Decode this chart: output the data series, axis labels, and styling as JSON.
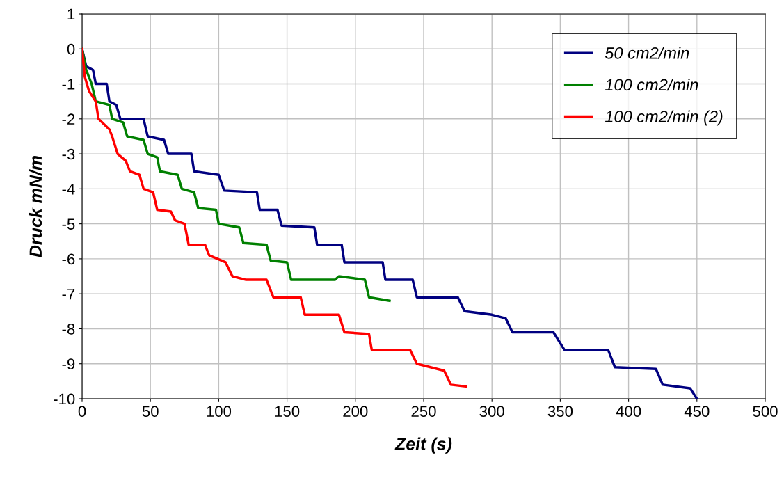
{
  "chart_data": {
    "type": "line",
    "xlabel": "Zeit (s)",
    "ylabel": "Druck mN/m",
    "xlim": [
      0,
      500
    ],
    "ylim": [
      -10,
      1
    ],
    "xticks": [
      0,
      50,
      100,
      150,
      200,
      250,
      300,
      350,
      400,
      450,
      500
    ],
    "yticks": [
      {
        "value": -10,
        "label": "-10"
      },
      {
        "value": -9,
        "label": "-9"
      },
      {
        "value": -8,
        "label": "-8"
      },
      {
        "value": -7,
        "label": "-7"
      },
      {
        "value": -6,
        "label": "-6"
      },
      {
        "value": -5,
        "label": "-5"
      },
      {
        "value": -4,
        "label": "-4"
      },
      {
        "value": -3,
        "label": "-3"
      },
      {
        "value": -2,
        "label": "-2"
      },
      {
        "value": -1,
        "label": "-1"
      },
      0,
      1
    ],
    "grid": true,
    "legend": "top right",
    "marker": "none",
    "line_style": "solid",
    "series": [
      {
        "name": "50 cm2/min",
        "color": "#000080",
        "x": [
          0,
          3,
          8,
          10,
          18,
          20,
          25,
          28,
          45,
          48,
          60,
          63,
          80,
          82,
          100,
          104,
          128,
          130,
          143,
          146,
          170,
          172,
          190,
          192,
          220,
          222,
          242,
          245,
          275,
          280,
          300,
          310,
          315,
          345,
          353,
          385,
          390,
          420,
          425,
          445,
          450
        ],
        "values": [
          0,
          -0.5,
          -0.6,
          -1.0,
          -1.0,
          -1.5,
          -1.6,
          -2.0,
          -2.0,
          -2.5,
          -2.6,
          -3.0,
          -3.0,
          -3.5,
          -3.6,
          -4.05,
          -4.1,
          -4.6,
          -4.6,
          -5.05,
          -5.1,
          -5.6,
          -5.6,
          -6.1,
          -6.1,
          -6.6,
          -6.6,
          -7.1,
          -7.1,
          -7.5,
          -7.6,
          -7.7,
          -8.1,
          -8.1,
          -8.6,
          -8.6,
          -9.1,
          -9.15,
          -9.6,
          -9.7,
          -10
        ]
      },
      {
        "name": "100 cm2/min",
        "color": "#008000",
        "x": [
          0,
          3,
          7,
          10,
          20,
          22,
          30,
          33,
          45,
          48,
          55,
          57,
          70,
          73,
          82,
          85,
          98,
          100,
          115,
          118,
          135,
          138,
          150,
          153,
          185,
          188,
          207,
          210,
          225
        ],
        "values": [
          0,
          -0.6,
          -1.0,
          -1.5,
          -1.6,
          -2.0,
          -2.1,
          -2.5,
          -2.6,
          -3.0,
          -3.1,
          -3.5,
          -3.6,
          -4.0,
          -4.1,
          -4.55,
          -4.6,
          -5.0,
          -5.1,
          -5.55,
          -5.6,
          -6.05,
          -6.1,
          -6.6,
          -6.6,
          -6.5,
          -6.6,
          -7.1,
          -7.2
        ]
      },
      {
        "name": "100 cm2/min (2)",
        "color": "#ff0000",
        "x": [
          0,
          2,
          5,
          10,
          12,
          20,
          22,
          26,
          32,
          35,
          42,
          45,
          52,
          55,
          65,
          68,
          75,
          78,
          90,
          93,
          105,
          110,
          120,
          135,
          140,
          160,
          163,
          188,
          192,
          210,
          212,
          240,
          245,
          255,
          265,
          270,
          281
        ],
        "values": [
          0,
          -0.8,
          -1.2,
          -1.5,
          -2.0,
          -2.3,
          -2.5,
          -3.0,
          -3.2,
          -3.5,
          -3.6,
          -4.0,
          -4.1,
          -4.6,
          -4.65,
          -4.9,
          -5.0,
          -5.6,
          -5.6,
          -5.9,
          -6.1,
          -6.5,
          -6.6,
          -6.6,
          -7.1,
          -7.1,
          -7.6,
          -7.6,
          -8.1,
          -8.15,
          -8.6,
          -8.6,
          -9.0,
          -9.1,
          -9.2,
          -9.6,
          -9.65
        ]
      }
    ]
  }
}
